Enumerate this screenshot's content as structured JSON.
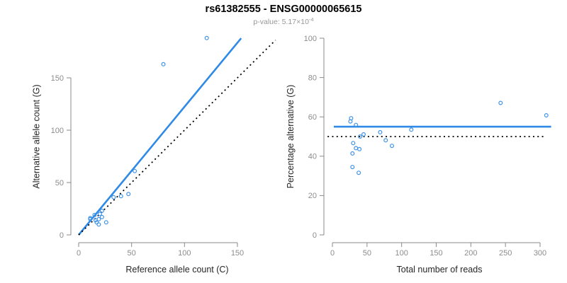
{
  "header": {
    "title": "rs61382555 - ENSG00000065615",
    "pvalue_label": "p-value: 5.17×10",
    "pvalue_exponent": "-4"
  },
  "colors": {
    "accent_blue": "#2e8ae6",
    "point_blue": "#3f93e8",
    "dotted_black": "#000000",
    "axis_gray": "#8a8a8a"
  },
  "chart_data": [
    {
      "type": "scatter",
      "panel": "left",
      "xlabel": "Reference allele count (C)",
      "ylabel": "Alternative allele count (G)",
      "xticks": [
        0,
        50,
        100,
        150
      ],
      "yticks": [
        0,
        50,
        100,
        150
      ],
      "xlim": [
        0,
        190
      ],
      "ylim": [
        0,
        190
      ],
      "grid": false,
      "legend": "none",
      "points": [
        [
          11,
          16
        ],
        [
          11,
          15
        ],
        [
          15,
          19
        ],
        [
          33,
          36
        ],
        [
          53,
          61
        ],
        [
          22,
          23
        ],
        [
          20,
          20
        ],
        [
          40,
          37
        ],
        [
          47,
          39
        ],
        [
          16,
          14
        ],
        [
          19,
          15
        ],
        [
          22,
          17
        ],
        [
          17,
          12
        ],
        [
          19,
          10
        ],
        [
          26,
          12
        ],
        [
          80,
          163
        ],
        [
          121,
          188
        ]
      ],
      "lines": [
        {
          "name": "regression-line",
          "style": "solid",
          "color": "#2e8ae6",
          "x1": 0,
          "y1": 0,
          "x2": 153.5,
          "y2": 187.8
        },
        {
          "name": "identity-line",
          "style": "dotted",
          "color": "#000000",
          "x1": 0,
          "y1": 0,
          "x2": 186,
          "y2": 186
        }
      ]
    },
    {
      "type": "scatter",
      "panel": "right",
      "xlabel": "Total number of reads",
      "ylabel": "Percentage alternative (G)",
      "xticks": [
        0,
        50,
        100,
        150,
        200,
        250,
        300
      ],
      "yticks": [
        0,
        20,
        40,
        60,
        80,
        100
      ],
      "xlim": [
        0,
        316
      ],
      "ylim": [
        0,
        100
      ],
      "grid": false,
      "legend": "none",
      "points": [
        [
          27,
          59.3
        ],
        [
          26,
          57.7
        ],
        [
          34,
          55.9
        ],
        [
          69,
          52.2
        ],
        [
          114,
          53.5
        ],
        [
          45,
          51.1
        ],
        [
          40,
          50.0
        ],
        [
          77,
          48.1
        ],
        [
          86,
          45.3
        ],
        [
          30,
          46.7
        ],
        [
          34,
          44.1
        ],
        [
          39,
          43.6
        ],
        [
          29,
          41.4
        ],
        [
          29,
          34.5
        ],
        [
          38,
          31.6
        ],
        [
          243,
          67.1
        ],
        [
          309,
          60.8
        ]
      ],
      "lines": [
        {
          "name": "mean-percentage-line",
          "style": "solid",
          "color": "#2e8ae6",
          "x1": 2,
          "y1": 55,
          "x2": 316,
          "y2": 55
        },
        {
          "name": "expected-50-percent-line",
          "style": "dotted",
          "color": "#000000",
          "x1": -7,
          "y1": 50,
          "x2": 307,
          "y2": 50
        }
      ]
    }
  ]
}
